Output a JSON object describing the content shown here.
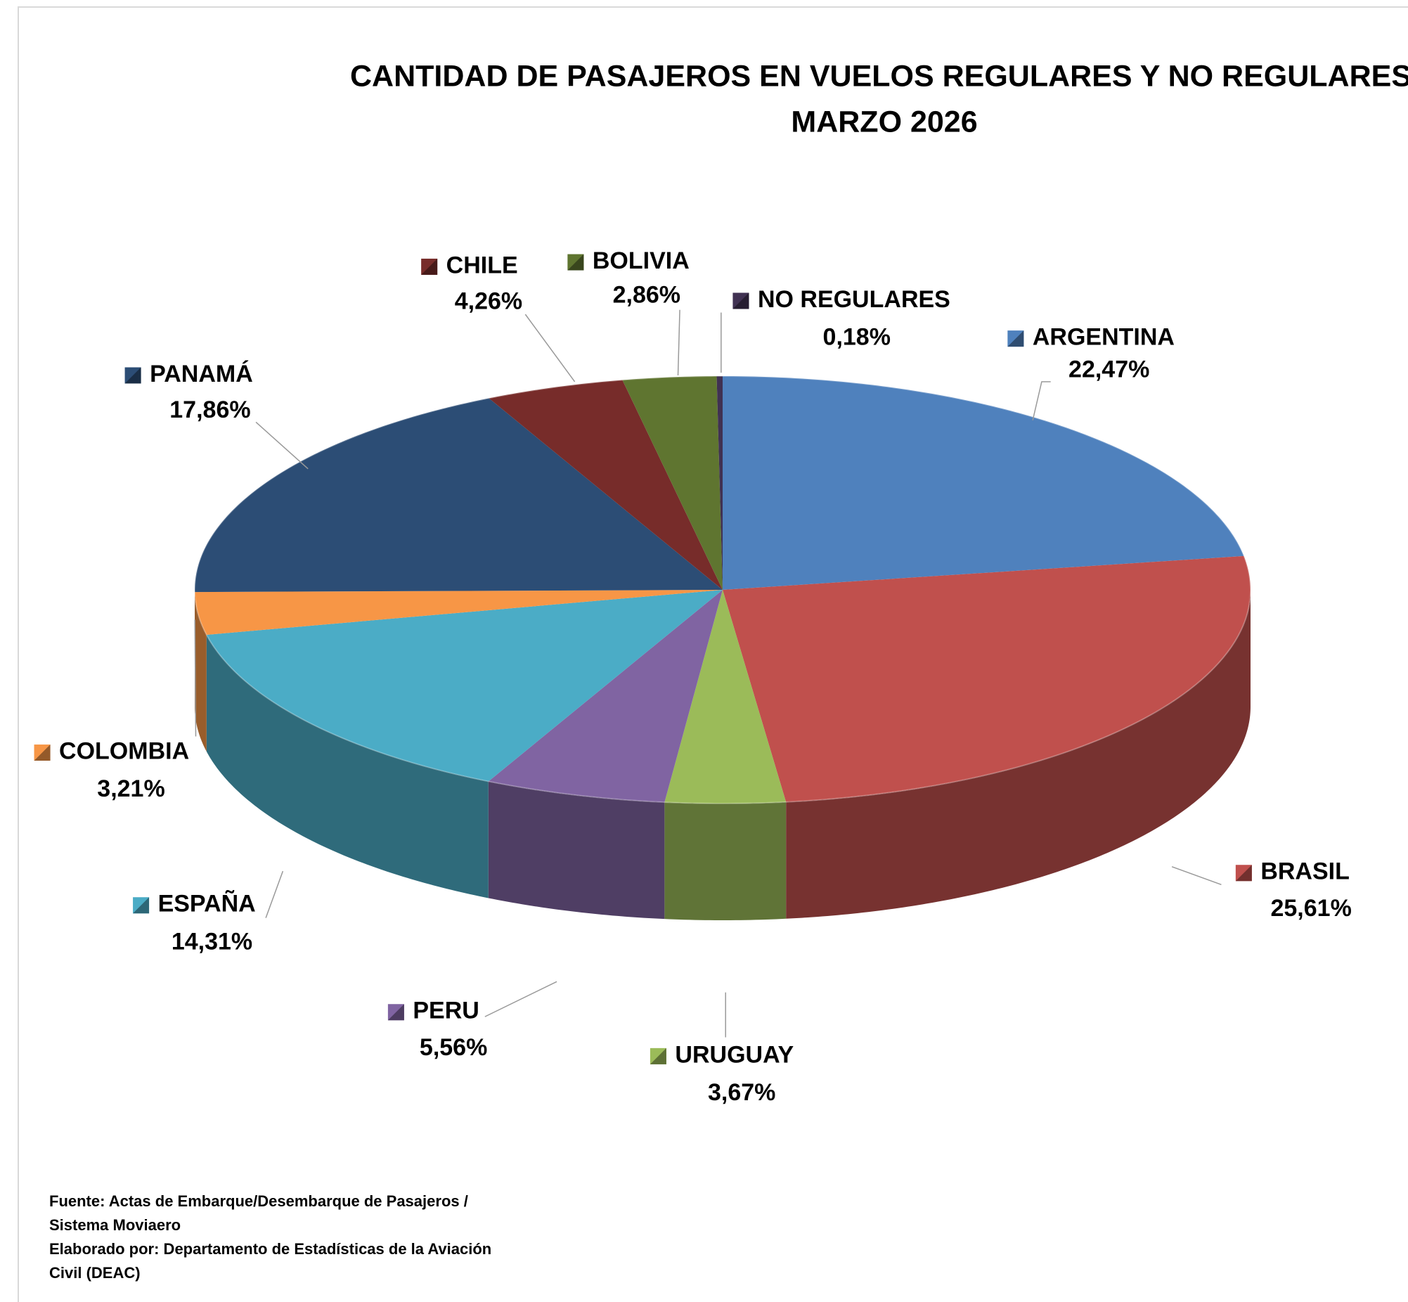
{
  "chart_data": {
    "type": "pie3d",
    "title": [
      "CANTIDAD DE PASAJEROS EN VUELOS REGULARES Y NO REGULARES",
      "MARZO 2026"
    ],
    "categories": [
      "ARGENTINA",
      "BRASIL",
      "URUGUAY",
      "PERU",
      "ESPAÑA",
      "COLOMBIA",
      "PANAMÁ",
      "CHILE",
      "BOLIVIA",
      "NO REGULARES"
    ],
    "values": [
      22.47,
      25.61,
      3.67,
      5.56,
      14.31,
      3.21,
      17.86,
      4.26,
      2.86,
      0.18
    ],
    "value_labels": [
      "22,47%",
      "25,61%",
      "3,67%",
      "5,56%",
      "14,31%",
      "3,21%",
      "17,86%",
      "4,26%",
      "2,86%",
      "0,18%"
    ],
    "colors": [
      "#4f81bd",
      "#c0504d",
      "#9bbb59",
      "#8064a2",
      "#4bacc6",
      "#f79646",
      "#2c4d75",
      "#772c2a",
      "#5f7530",
      "#403152"
    ],
    "notes": [
      "Fuente: Actas de Embarque/Desembarque de Pasajeros  /",
      "Sistema Moviaero",
      "Elaborado por: Departamento de Estadísticas de la Aviación",
      "Civil (DEAC)"
    ]
  }
}
